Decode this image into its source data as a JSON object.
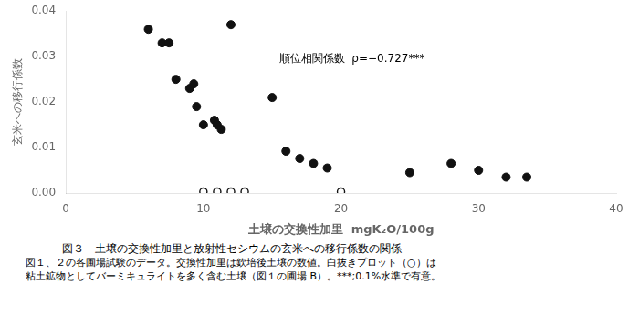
{
  "chart_data": {
    "type": "scatter",
    "x_label": "土壌の交換性加里  mgK₂O/100g",
    "y_label": "玄米への移行係数",
    "series": [
      {
        "color": "#111111",
        "marker": "circle",
        "x": [
          6.0,
          7.0,
          7.5,
          8.0,
          9.0,
          9.3,
          9.5,
          10.0,
          10.8,
          11.0,
          11.3,
          12.0,
          15.0,
          16.0,
          17.0,
          18.0,
          19.0,
          25.0,
          28.0,
          30.0,
          32.0,
          33.5
        ],
        "values": [
          0.036,
          0.033,
          0.033,
          0.025,
          0.023,
          0.024,
          0.019,
          0.015,
          0.016,
          0.015,
          0.014,
          0.037,
          0.021,
          0.0092,
          0.0076,
          0.0065,
          0.0055,
          0.0045,
          0.0065,
          0.005,
          0.0035,
          0.0035
        ]
      },
      {
        "color": "#111111",
        "marker": "open_circle",
        "x": [
          10.0,
          11.0,
          12.0,
          13.0,
          20.0
        ],
        "values": [
          0.0003,
          0.0003,
          0.0003,
          0.0003,
          0.0003
        ]
      }
    ],
    "xlim": [
      0,
      40
    ],
    "ylim": [
      0,
      0.04
    ],
    "xticks": [
      0,
      10,
      20,
      30,
      40
    ],
    "yticks": [
      {
        "value": 0,
        "label": "0.00"
      },
      0.01,
      0.02,
      0.03,
      0.04
    ],
    "annotations": [
      {
        "text": "順位相関係数  ρ=−0.727***",
        "x": 15.5,
        "y": 0.0295,
        "color": "#000000"
      }
    ],
    "captions": [
      "図３　土壌の交換性加里と放射性セシウムの玄米への移行係数の関係",
      "図１、２の各圃場試験のデータ。交換性加里は欽培後土壌の数値。白抜きプロット（○）は",
      "粘土鉱物としてバーミキュライトを多く含む土壌（図１の圃場 B）。***;0.1%水準で有意。"
    ],
    "grid": false,
    "legend": false
  }
}
